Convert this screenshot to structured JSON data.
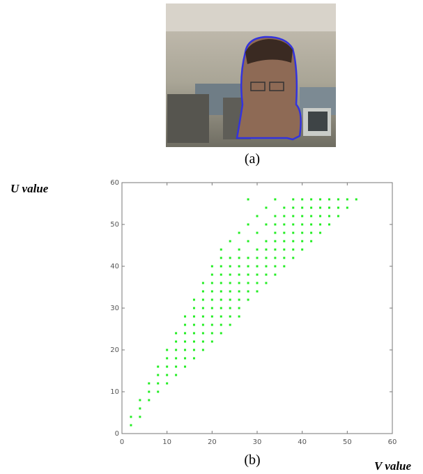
{
  "captions": {
    "a": "(a)",
    "b": "(b)"
  },
  "chart_data": {
    "type": "scatter",
    "x_label": "V value",
    "y_label": "U value",
    "color": "#22ee22",
    "xlim": [
      0,
      60
    ],
    "ylim": [
      0,
      60
    ],
    "xticks": [
      0,
      10,
      20,
      30,
      40,
      50,
      60
    ],
    "yticks": [
      0,
      10,
      20,
      30,
      40,
      50,
      60
    ],
    "x": [
      2,
      2,
      4,
      4,
      4,
      6,
      6,
      8,
      6,
      8,
      10,
      8,
      10,
      12,
      8,
      10,
      12,
      14,
      10,
      12,
      14,
      16,
      10,
      12,
      14,
      16,
      18,
      12,
      14,
      16,
      18,
      20,
      12,
      14,
      16,
      18,
      20,
      22,
      14,
      16,
      18,
      20,
      22,
      24,
      14,
      16,
      18,
      20,
      22,
      24,
      26,
      16,
      18,
      20,
      22,
      24,
      26,
      16,
      18,
      20,
      22,
      24,
      26,
      28,
      18,
      20,
      22,
      24,
      26,
      28,
      30,
      18,
      20,
      22,
      24,
      26,
      28,
      30,
      32,
      20,
      22,
      24,
      26,
      28,
      30,
      32,
      34,
      20,
      22,
      24,
      26,
      28,
      30,
      32,
      34,
      36,
      22,
      24,
      26,
      28,
      30,
      32,
      34,
      36,
      38,
      22,
      26,
      30,
      32,
      34,
      36,
      38,
      40,
      24,
      28,
      32,
      34,
      36,
      38,
      40,
      42,
      26,
      30,
      34,
      36,
      38,
      40,
      42,
      44,
      28,
      32,
      34,
      36,
      38,
      40,
      42,
      44,
      46,
      30,
      34,
      36,
      38,
      40,
      42,
      44,
      46,
      48,
      32,
      36,
      38,
      40,
      42,
      44,
      46,
      48,
      50,
      28,
      34,
      38,
      40,
      42,
      44,
      46,
      48,
      50,
      52
    ],
    "y": [
      2,
      4,
      4,
      6,
      8,
      8,
      10,
      10,
      12,
      12,
      12,
      14,
      14,
      14,
      16,
      16,
      16,
      16,
      18,
      18,
      18,
      18,
      20,
      20,
      20,
      20,
      20,
      22,
      22,
      22,
      22,
      22,
      24,
      24,
      24,
      24,
      24,
      24,
      26,
      26,
      26,
      26,
      26,
      26,
      28,
      28,
      28,
      28,
      28,
      28,
      28,
      30,
      30,
      30,
      30,
      30,
      30,
      32,
      32,
      32,
      32,
      32,
      32,
      32,
      34,
      34,
      34,
      34,
      34,
      34,
      34,
      36,
      36,
      36,
      36,
      36,
      36,
      36,
      36,
      38,
      38,
      38,
      38,
      38,
      38,
      38,
      38,
      40,
      40,
      40,
      40,
      40,
      40,
      40,
      40,
      40,
      42,
      42,
      42,
      42,
      42,
      42,
      42,
      42,
      42,
      44,
      44,
      44,
      44,
      44,
      44,
      44,
      44,
      46,
      46,
      46,
      46,
      46,
      46,
      46,
      46,
      48,
      48,
      48,
      48,
      48,
      48,
      48,
      48,
      50,
      50,
      50,
      50,
      50,
      50,
      50,
      50,
      50,
      52,
      52,
      52,
      52,
      52,
      52,
      52,
      52,
      52,
      54,
      54,
      54,
      54,
      54,
      54,
      54,
      54,
      54,
      56,
      56,
      56,
      56,
      56,
      56,
      56,
      56,
      56,
      56
    ]
  }
}
